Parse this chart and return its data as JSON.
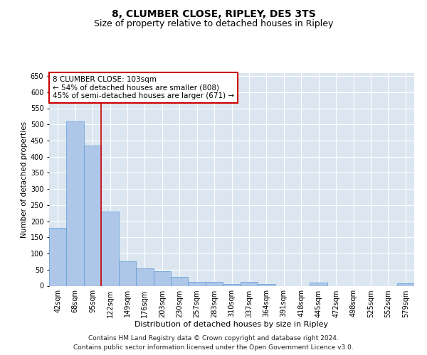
{
  "title1": "8, CLUMBER CLOSE, RIPLEY, DE5 3TS",
  "title2": "Size of property relative to detached houses in Ripley",
  "xlabel": "Distribution of detached houses by size in Ripley",
  "ylabel": "Number of detached properties",
  "categories": [
    "42sqm",
    "68sqm",
    "95sqm",
    "122sqm",
    "149sqm",
    "176sqm",
    "203sqm",
    "230sqm",
    "257sqm",
    "283sqm",
    "310sqm",
    "337sqm",
    "364sqm",
    "391sqm",
    "418sqm",
    "445sqm",
    "472sqm",
    "498sqm",
    "525sqm",
    "552sqm",
    "579sqm"
  ],
  "values": [
    180,
    510,
    435,
    230,
    75,
    55,
    45,
    28,
    12,
    12,
    5,
    12,
    5,
    0,
    0,
    10,
    0,
    0,
    0,
    0,
    8
  ],
  "bar_color": "#aec6e8",
  "bar_edge_color": "#5b9bd5",
  "background_color": "#dce6f1",
  "grid_color": "#ffffff",
  "annotation_box_color": "#ffffff",
  "annotation_border_color": "#cc0000",
  "redline_color": "#cc0000",
  "redline_x": 2.5,
  "annotation_text_line1": "8 CLUMBER CLOSE: 103sqm",
  "annotation_text_line2": "← 54% of detached houses are smaller (808)",
  "annotation_text_line3": "45% of semi-detached houses are larger (671) →",
  "footer1": "Contains HM Land Registry data © Crown copyright and database right 2024.",
  "footer2": "Contains public sector information licensed under the Open Government Licence v3.0.",
  "ylim": [
    0,
    660
  ],
  "yticks": [
    0,
    50,
    100,
    150,
    200,
    250,
    300,
    350,
    400,
    450,
    500,
    550,
    600,
    650
  ],
  "title1_fontsize": 10,
  "title2_fontsize": 9,
  "xlabel_fontsize": 8,
  "ylabel_fontsize": 7.5,
  "tick_fontsize": 7,
  "annotation_fontsize": 7.5,
  "footer_fontsize": 6.5
}
